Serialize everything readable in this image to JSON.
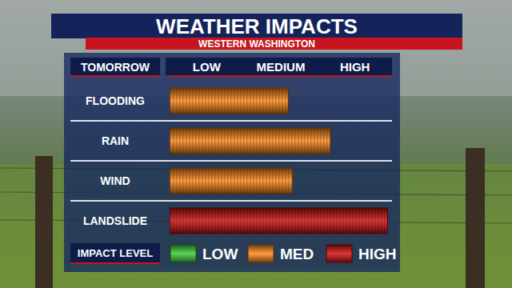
{
  "chart_data": {
    "type": "bar",
    "orientation": "horizontal",
    "stacked": true,
    "title": "WEATHER IMPACTS",
    "subtitle": "WESTERN WASHINGTON",
    "y_label": "TOMORROW",
    "legend_title": "IMPACT LEVEL",
    "legend": "bottom",
    "categories": [
      "FLOODING",
      "RAIN",
      "WIND",
      "LANDSLIDE"
    ],
    "series": [
      {
        "name": "LOW",
        "color": "#3ecf3e",
        "values": [
          null,
          null,
          null,
          null
        ]
      },
      {
        "name": "MED",
        "color": "#ff8a1c",
        "values": [
          1.6,
          2.17,
          1.66,
          null
        ]
      },
      {
        "name": "HIGH",
        "color": "#d41414",
        "values": [
          null,
          null,
          null,
          2.94
        ]
      }
    ],
    "xlim": [
      0,
      3
    ],
    "xticks": [
      {
        "value": 0.5,
        "label": "LOW"
      },
      {
        "value": 1.5,
        "label": "MEDIUM"
      },
      {
        "value": 2.5,
        "label": "HIGH"
      }
    ],
    "grid": false
  }
}
